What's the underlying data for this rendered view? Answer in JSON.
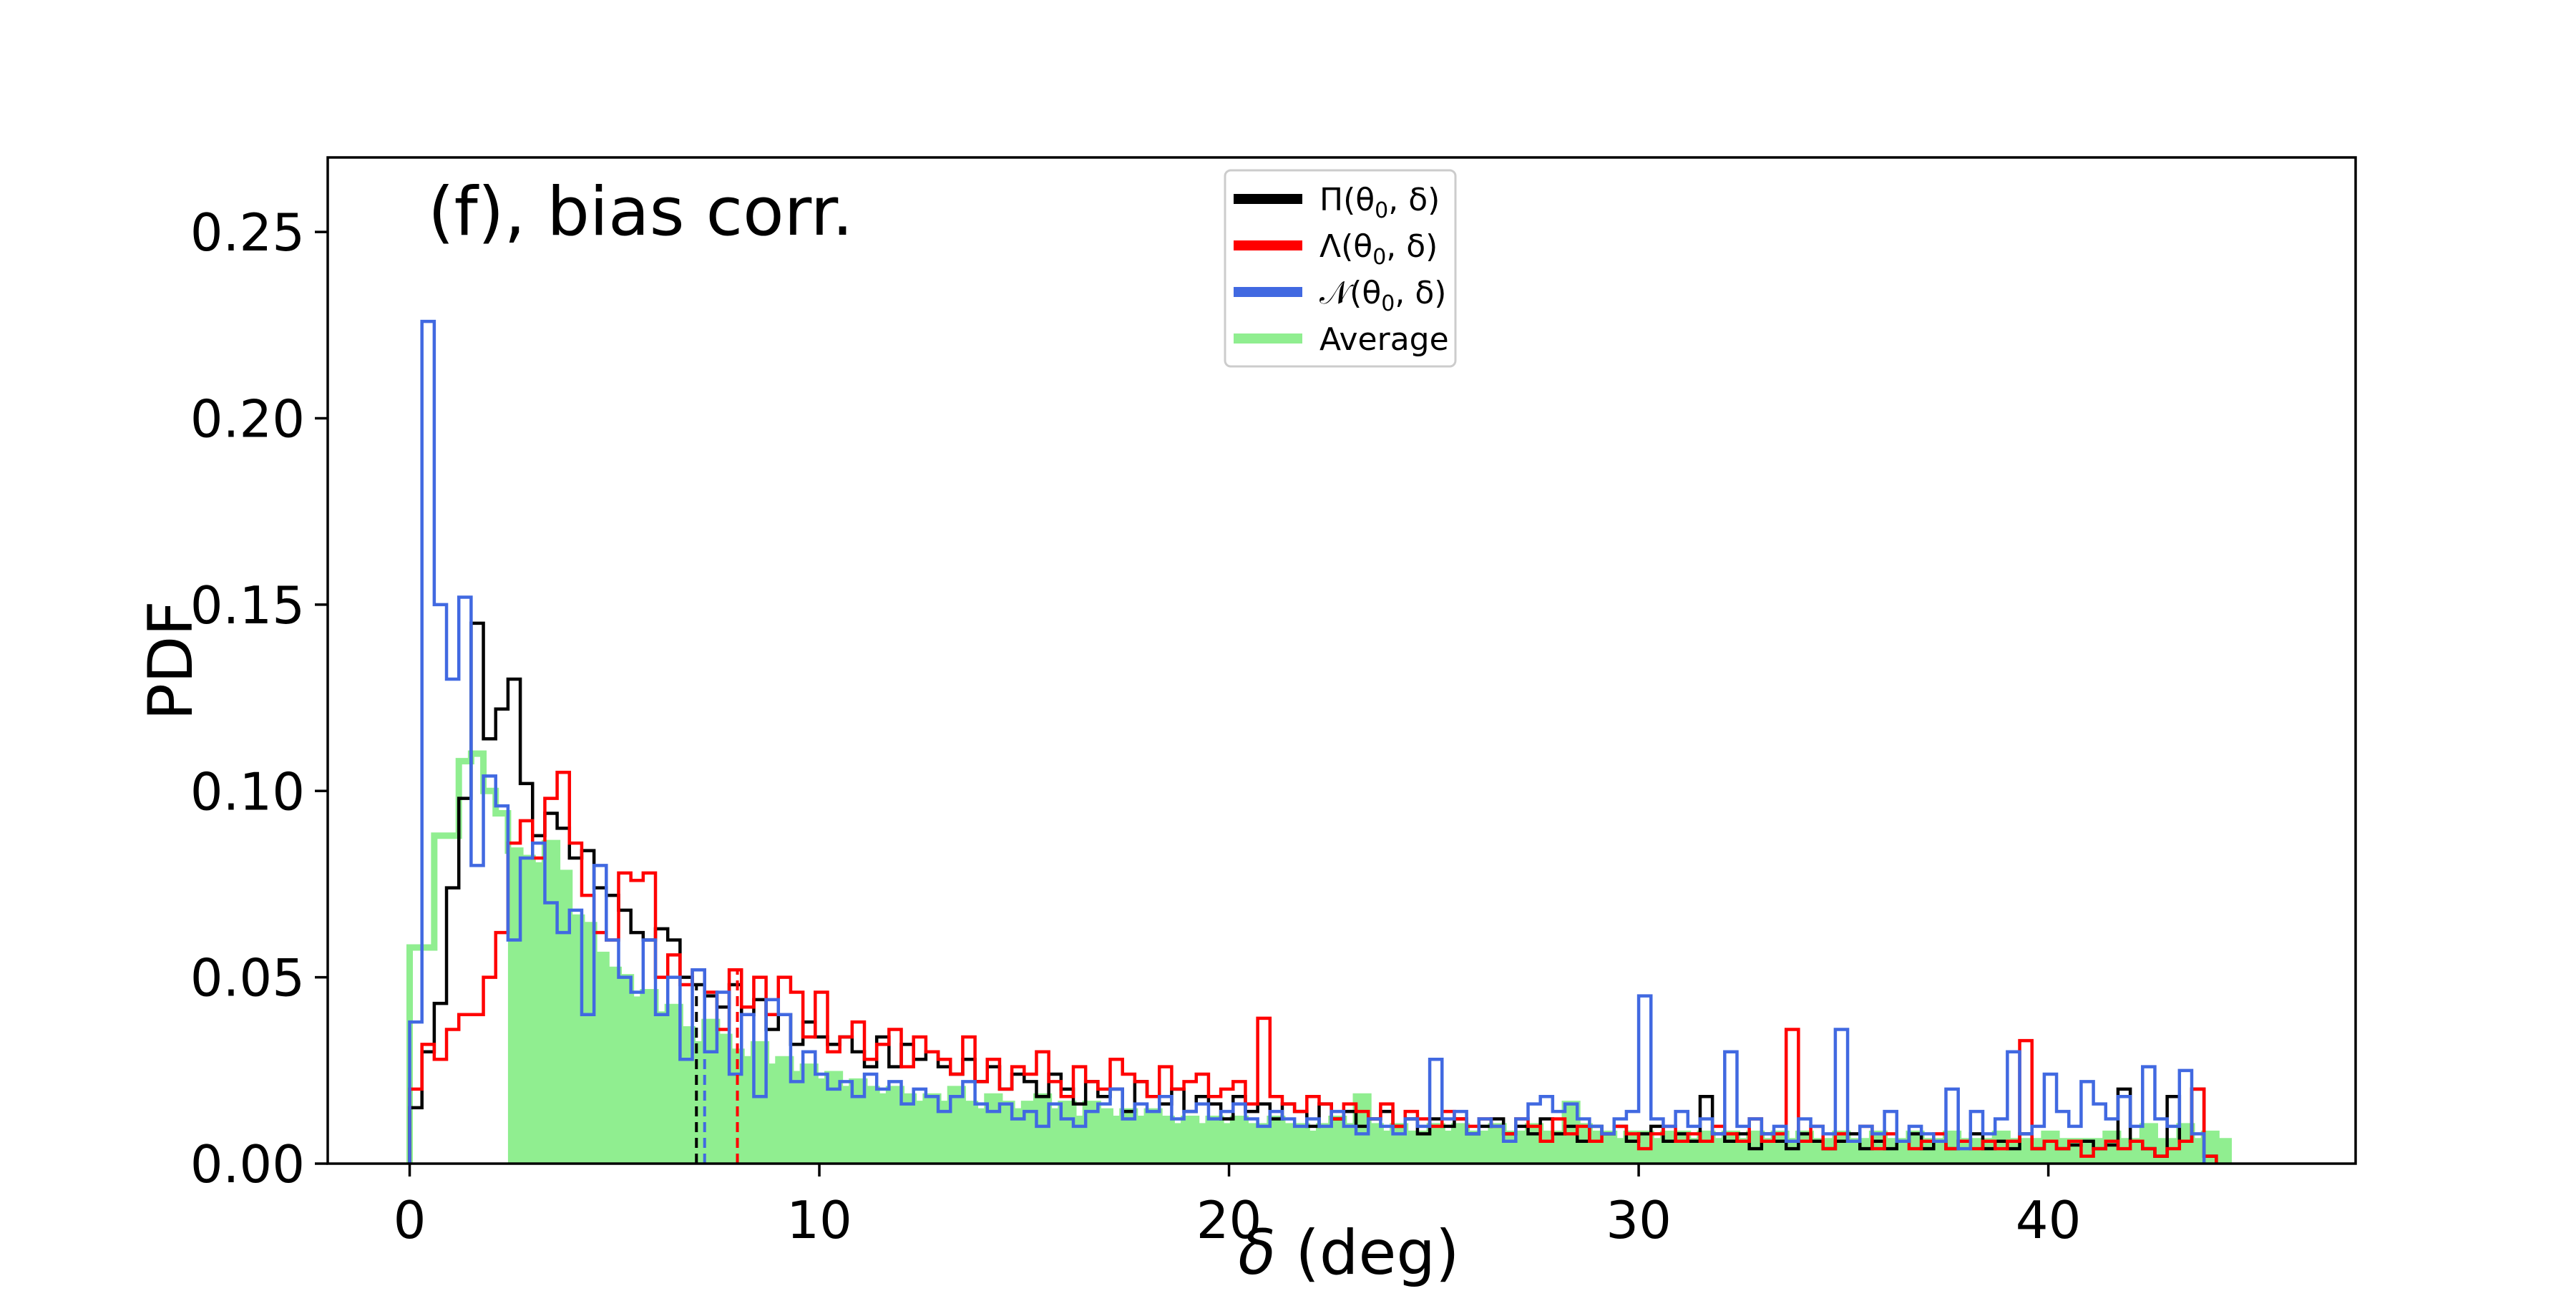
{
  "chart_data": {
    "type": "histogram",
    "panel_label": "(f), bias corr.",
    "xlabel_symbol": "δ",
    "xlabel_unit": " (deg)",
    "ylabel": "PDF",
    "xlim": [
      -2.0,
      47.5
    ],
    "ylim": [
      0,
      0.27
    ],
    "xticks": [
      0,
      10,
      20,
      30,
      40
    ],
    "xtick_labels": [
      "0",
      "10",
      "20",
      "30",
      "40"
    ],
    "yticks": [
      0.0,
      0.05,
      0.1,
      0.15,
      0.2,
      0.25
    ],
    "ytick_labels": [
      "0.00",
      "0.05",
      "0.10",
      "0.15",
      "0.20",
      "0.25"
    ],
    "legend_position": "top-center",
    "bin_start": 0,
    "bin_width": 0.3,
    "series": [
      {
        "name": "Π(θ₀, δ)",
        "legend_base": "Π(θ",
        "legend_sub": "0",
        "legend_tail": ", δ)",
        "color": "#000000",
        "style": "step",
        "median_line": 7.0,
        "values": [
          0.015,
          0.03,
          0.043,
          0.074,
          0.098,
          0.145,
          0.114,
          0.122,
          0.13,
          0.102,
          0.088,
          0.094,
          0.09,
          0.082,
          0.084,
          0.074,
          0.072,
          0.068,
          0.062,
          0.06,
          0.063,
          0.06,
          0.05,
          0.048,
          0.045,
          0.042,
          0.048,
          0.04,
          0.044,
          0.036,
          0.04,
          0.032,
          0.038,
          0.034,
          0.032,
          0.034,
          0.03,
          0.026,
          0.034,
          0.026,
          0.032,
          0.028,
          0.03,
          0.026,
          0.024,
          0.028,
          0.022,
          0.026,
          0.02,
          0.024,
          0.022,
          0.018,
          0.024,
          0.02,
          0.016,
          0.022,
          0.018,
          0.02,
          0.014,
          0.022,
          0.018,
          0.016,
          0.02,
          0.014,
          0.018,
          0.016,
          0.012,
          0.018,
          0.014,
          0.016,
          0.012,
          0.016,
          0.014,
          0.01,
          0.016,
          0.012,
          0.014,
          0.01,
          0.012,
          0.014,
          0.01,
          0.012,
          0.008,
          0.012,
          0.01,
          0.012,
          0.008,
          0.01,
          0.012,
          0.008,
          0.01,
          0.008,
          0.012,
          0.008,
          0.01,
          0.006,
          0.01,
          0.008,
          0.01,
          0.006,
          0.008,
          0.01,
          0.006,
          0.008,
          0.006,
          0.018,
          0.008,
          0.006,
          0.008,
          0.004,
          0.008,
          0.006,
          0.004,
          0.008,
          0.006,
          0.004,
          0.006,
          0.008,
          0.004,
          0.006,
          0.004,
          0.006,
          0.008,
          0.004,
          0.006,
          0.004,
          0.006,
          0.008,
          0.004,
          0.006,
          0.004,
          0.008,
          0.004,
          0.006,
          0.004,
          0.005,
          0.006,
          0.004,
          0.005,
          0.02,
          0.006,
          0.004,
          0.002,
          0.018,
          0.006,
          0.02,
          0.002
        ]
      },
      {
        "name": "Λ(θ₀, δ)",
        "legend_base": "Λ(θ",
        "legend_sub": "0",
        "legend_tail": ", δ)",
        "color": "#ff0000",
        "style": "step",
        "median_line": 8.0,
        "values": [
          0.02,
          0.032,
          0.028,
          0.036,
          0.04,
          0.04,
          0.05,
          0.062,
          0.086,
          0.092,
          0.082,
          0.098,
          0.105,
          0.086,
          0.072,
          0.062,
          0.06,
          0.078,
          0.076,
          0.078,
          0.05,
          0.056,
          0.048,
          0.052,
          0.046,
          0.036,
          0.052,
          0.042,
          0.05,
          0.04,
          0.05,
          0.046,
          0.034,
          0.046,
          0.03,
          0.034,
          0.038,
          0.028,
          0.032,
          0.036,
          0.026,
          0.034,
          0.03,
          0.028,
          0.024,
          0.034,
          0.022,
          0.028,
          0.02,
          0.026,
          0.024,
          0.03,
          0.022,
          0.018,
          0.026,
          0.022,
          0.02,
          0.028,
          0.024,
          0.022,
          0.018,
          0.026,
          0.02,
          0.022,
          0.024,
          0.018,
          0.02,
          0.022,
          0.016,
          0.039,
          0.018,
          0.016,
          0.014,
          0.018,
          0.016,
          0.012,
          0.016,
          0.014,
          0.012,
          0.016,
          0.01,
          0.014,
          0.012,
          0.01,
          0.014,
          0.012,
          0.01,
          0.012,
          0.01,
          0.008,
          0.012,
          0.01,
          0.006,
          0.012,
          0.008,
          0.01,
          0.006,
          0.008,
          0.01,
          0.008,
          0.004,
          0.008,
          0.01,
          0.006,
          0.008,
          0.006,
          0.01,
          0.008,
          0.006,
          0.012,
          0.006,
          0.008,
          0.036,
          0.006,
          0.01,
          0.004,
          0.008,
          0.006,
          0.01,
          0.004,
          0.008,
          0.006,
          0.004,
          0.006,
          0.008,
          0.004,
          0.006,
          0.004,
          0.006,
          0.004,
          0.006,
          0.033,
          0.004,
          0.006,
          0.004,
          0.006,
          0.002,
          0.004,
          0.006,
          0.004,
          0.006,
          0.004,
          0.002,
          0.004,
          0.006,
          0.02,
          0.002
        ]
      },
      {
        "name": "𝒩(θ₀, δ)",
        "legend_base": "𝒩(θ",
        "legend_sub": "0",
        "legend_tail": ", δ)",
        "color": "#4169e1",
        "style": "step",
        "median_line": 7.2,
        "values": [
          0.038,
          0.226,
          0.15,
          0.13,
          0.152,
          0.08,
          0.104,
          0.096,
          0.06,
          0.082,
          0.086,
          0.07,
          0.062,
          0.068,
          0.04,
          0.08,
          0.06,
          0.05,
          0.046,
          0.06,
          0.04,
          0.05,
          0.028,
          0.052,
          0.03,
          0.046,
          0.024,
          0.04,
          0.018,
          0.044,
          0.04,
          0.022,
          0.03,
          0.024,
          0.02,
          0.022,
          0.018,
          0.024,
          0.02,
          0.022,
          0.016,
          0.02,
          0.018,
          0.014,
          0.018,
          0.022,
          0.016,
          0.014,
          0.016,
          0.012,
          0.014,
          0.01,
          0.016,
          0.012,
          0.01,
          0.014,
          0.016,
          0.02,
          0.012,
          0.016,
          0.014,
          0.018,
          0.012,
          0.014,
          0.016,
          0.012,
          0.014,
          0.016,
          0.012,
          0.01,
          0.014,
          0.012,
          0.01,
          0.012,
          0.01,
          0.014,
          0.01,
          0.008,
          0.012,
          0.01,
          0.008,
          0.012,
          0.01,
          0.028,
          0.012,
          0.014,
          0.008,
          0.012,
          0.01,
          0.006,
          0.012,
          0.016,
          0.018,
          0.014,
          0.016,
          0.012,
          0.01,
          0.008,
          0.012,
          0.014,
          0.045,
          0.012,
          0.01,
          0.014,
          0.01,
          0.012,
          0.008,
          0.03,
          0.01,
          0.012,
          0.008,
          0.01,
          0.006,
          0.012,
          0.01,
          0.008,
          0.036,
          0.006,
          0.01,
          0.008,
          0.014,
          0.006,
          0.01,
          0.008,
          0.006,
          0.02,
          0.004,
          0.014,
          0.008,
          0.012,
          0.03,
          0.008,
          0.01,
          0.024,
          0.014,
          0.01,
          0.022,
          0.016,
          0.012,
          0.018,
          0.01,
          0.026,
          0.012,
          0.01,
          0.025,
          0.008
        ]
      },
      {
        "name": "Average",
        "legend_label": "Average",
        "color": "#90ee90",
        "style": "filled-step",
        "values": [
          0.058,
          0.058,
          0.088,
          0.088,
          0.108,
          0.11,
          0.1,
          0.094,
          0.084,
          0.082,
          0.08,
          0.086,
          0.078,
          0.066,
          0.064,
          0.056,
          0.052,
          0.05,
          0.044,
          0.046,
          0.04,
          0.042,
          0.036,
          0.032,
          0.038,
          0.034,
          0.03,
          0.028,
          0.032,
          0.026,
          0.028,
          0.024,
          0.026,
          0.022,
          0.024,
          0.02,
          0.022,
          0.02,
          0.018,
          0.02,
          0.018,
          0.016,
          0.018,
          0.016,
          0.02,
          0.016,
          0.014,
          0.018,
          0.016,
          0.014,
          0.016,
          0.018,
          0.014,
          0.016,
          0.012,
          0.016,
          0.014,
          0.012,
          0.014,
          0.012,
          0.014,
          0.012,
          0.01,
          0.012,
          0.01,
          0.012,
          0.01,
          0.012,
          0.01,
          0.01,
          0.012,
          0.01,
          0.01,
          0.008,
          0.01,
          0.012,
          0.01,
          0.018,
          0.01,
          0.008,
          0.01,
          0.008,
          0.008,
          0.01,
          0.008,
          0.01,
          0.008,
          0.008,
          0.01,
          0.008,
          0.008,
          0.01,
          0.008,
          0.008,
          0.016,
          0.01,
          0.008,
          0.008,
          0.006,
          0.008,
          0.008,
          0.006,
          0.008,
          0.008,
          0.006,
          0.008,
          0.006,
          0.008,
          0.006,
          0.008,
          0.006,
          0.008,
          0.006,
          0.008,
          0.006,
          0.006,
          0.008,
          0.006,
          0.006,
          0.008,
          0.006,
          0.006,
          0.008,
          0.006,
          0.006,
          0.008,
          0.006,
          0.006,
          0.006,
          0.008,
          0.006,
          0.006,
          0.006,
          0.008,
          0.006,
          0.006,
          0.006,
          0.006,
          0.008,
          0.006,
          0.006,
          0.01,
          0.006,
          0.006,
          0.01,
          0.006,
          0.008,
          0.006
        ]
      }
    ]
  }
}
